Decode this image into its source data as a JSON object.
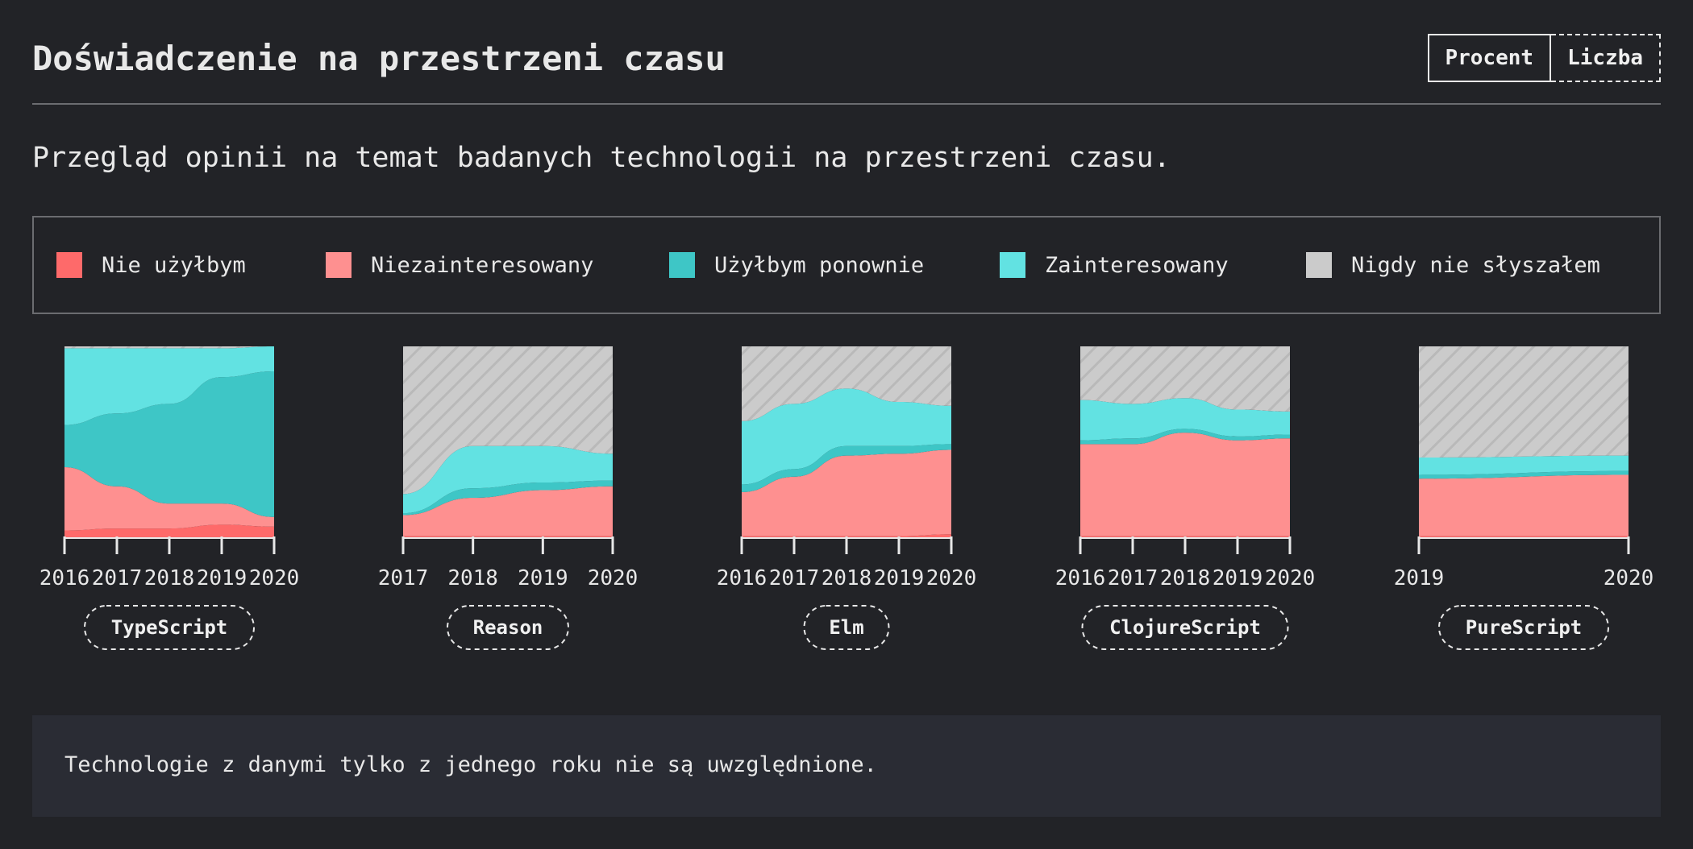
{
  "header": {
    "title": "Doświadczenie na przestrzeni czasu",
    "toggle_percent": "Procent",
    "toggle_count": "Liczba"
  },
  "subtitle": "Przegląd opinii na temat badanych technologii na przestrzeni czasu.",
  "legend": [
    {
      "label": "Nie użyłbym",
      "color": "#fe6a6a"
    },
    {
      "label": "Niezainteresowany",
      "color": "#fe9090"
    },
    {
      "label": "Użyłbym ponownie",
      "color": "#3ec6c6"
    },
    {
      "label": "Zainteresowany",
      "color": "#62e2e2"
    },
    {
      "label": "Nigdy nie słyszałem",
      "color": "#cbcbcb"
    }
  ],
  "chart_data": [
    {
      "type": "area",
      "stacked": true,
      "label": "TypeScript",
      "x": [
        "2016",
        "2017",
        "2018",
        "2019",
        "2020"
      ],
      "ylim": [
        0,
        100
      ],
      "series": [
        {
          "name": "Nie użyłbym",
          "values": [
            4,
            5,
            5,
            7,
            6
          ]
        },
        {
          "name": "Niezainteresowany",
          "values": [
            33,
            22,
            13,
            11,
            5
          ]
        },
        {
          "name": "Użyłbym ponownie",
          "values": [
            22,
            38,
            52,
            66,
            76
          ]
        },
        {
          "name": "Zainteresowany",
          "values": [
            40,
            34,
            29,
            15,
            13
          ]
        },
        {
          "name": "Nigdy nie słyszałem",
          "values": [
            1,
            1,
            1,
            1,
            0
          ]
        }
      ]
    },
    {
      "type": "area",
      "stacked": true,
      "label": "Reason",
      "x": [
        "2017",
        "2018",
        "2019",
        "2020"
      ],
      "ylim": [
        0,
        100
      ],
      "series": [
        {
          "name": "Nie użyłbym",
          "values": [
            1,
            1,
            1,
            1
          ]
        },
        {
          "name": "Niezainteresowany",
          "values": [
            11,
            20,
            24,
            26
          ]
        },
        {
          "name": "Użyłbym ponownie",
          "values": [
            1,
            5,
            4,
            3
          ]
        },
        {
          "name": "Zainteresowany",
          "values": [
            10,
            22,
            19,
            14
          ]
        },
        {
          "name": "Nigdy nie słyszałem",
          "values": [
            77,
            52,
            52,
            56
          ]
        }
      ]
    },
    {
      "type": "area",
      "stacked": true,
      "label": "Elm",
      "x": [
        "2016",
        "2017",
        "2018",
        "2019",
        "2020"
      ],
      "ylim": [
        0,
        100
      ],
      "series": [
        {
          "name": "Nie użyłbym",
          "values": [
            1,
            1,
            1,
            1,
            2
          ]
        },
        {
          "name": "Niezainteresowany",
          "values": [
            23,
            31,
            42,
            43,
            44
          ]
        },
        {
          "name": "Użyłbym ponownie",
          "values": [
            4,
            4,
            5,
            4,
            3
          ]
        },
        {
          "name": "Zainteresowany",
          "values": [
            33,
            34,
            30,
            23,
            20
          ]
        },
        {
          "name": "Nigdy nie słyszałem",
          "values": [
            39,
            30,
            22,
            29,
            31
          ]
        }
      ]
    },
    {
      "type": "area",
      "stacked": true,
      "label": "ClojureScript",
      "x": [
        "2016",
        "2017",
        "2018",
        "2019",
        "2020"
      ],
      "ylim": [
        0,
        100
      ],
      "series": [
        {
          "name": "Nie użyłbym",
          "values": [
            1,
            1,
            1,
            1,
            1
          ]
        },
        {
          "name": "Niezainteresowany",
          "values": [
            48,
            48,
            54,
            50,
            51
          ]
        },
        {
          "name": "Użyłbym ponownie",
          "values": [
            2,
            3,
            2,
            2,
            2
          ]
        },
        {
          "name": "Zainteresowany",
          "values": [
            21,
            18,
            16,
            14,
            12
          ]
        },
        {
          "name": "Nigdy nie słyszałem",
          "values": [
            28,
            30,
            27,
            33,
            34
          ]
        }
      ]
    },
    {
      "type": "area",
      "stacked": true,
      "label": "PureScript",
      "x": [
        "2019",
        "2020"
      ],
      "ylim": [
        0,
        100
      ],
      "series": [
        {
          "name": "Nie użyłbym",
          "values": [
            1,
            1
          ]
        },
        {
          "name": "Niezainteresowany",
          "values": [
            30,
            32
          ]
        },
        {
          "name": "Użyłbym ponownie",
          "values": [
            2,
            2
          ]
        },
        {
          "name": "Zainteresowany",
          "values": [
            9,
            8
          ]
        },
        {
          "name": "Nigdy nie słyszałem",
          "values": [
            58,
            57
          ]
        }
      ]
    }
  ],
  "note": "Technologie z danymi tylko z jednego roku nie są uwzględnione."
}
